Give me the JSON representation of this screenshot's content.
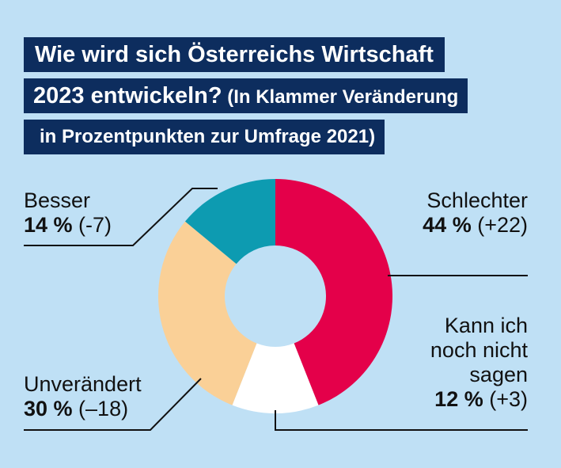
{
  "title": {
    "line1": "Wie wird sich Österreichs Wirtschaft",
    "line2_main": "2023 entwickeln?",
    "line2_sub": " (In Klammer Veränderung",
    "line3": "in Prozentpunkten zur Umfrage 2021)"
  },
  "colors": {
    "background": "#bfe0f5",
    "title_bar": "#0d2d5e",
    "schlechter": "#e4004a",
    "kann_nicht_sagen": "#ffffff",
    "unveraendert": "#fad097",
    "besser": "#0d9bb1"
  },
  "chart_data": {
    "type": "pie",
    "variant": "donut",
    "start": "12 o'clock, clockwise",
    "slices": [
      {
        "key": "schlechter",
        "value": 44,
        "change": "+22"
      },
      {
        "key": "kann_nicht_sagen",
        "value": 12,
        "change": "+3"
      },
      {
        "key": "unveraendert",
        "value": 30,
        "change": "-18"
      },
      {
        "key": "besser",
        "value": 14,
        "change": "-7"
      }
    ]
  },
  "labels": {
    "besser": {
      "name": "Besser",
      "pct": "14 %",
      "change": " (-7)"
    },
    "schlechter": {
      "name": "Schlechter",
      "pct": "44 %",
      "change": " (+22)"
    },
    "kann": {
      "name_line1": "Kann ich",
      "name_line2": "noch nicht",
      "name_line3": "sagen",
      "pct": "12 %",
      "change": " (+3)"
    },
    "unveraendert": {
      "name": "Unverändert",
      "pct": "30 %",
      "change": " (–18)"
    }
  }
}
